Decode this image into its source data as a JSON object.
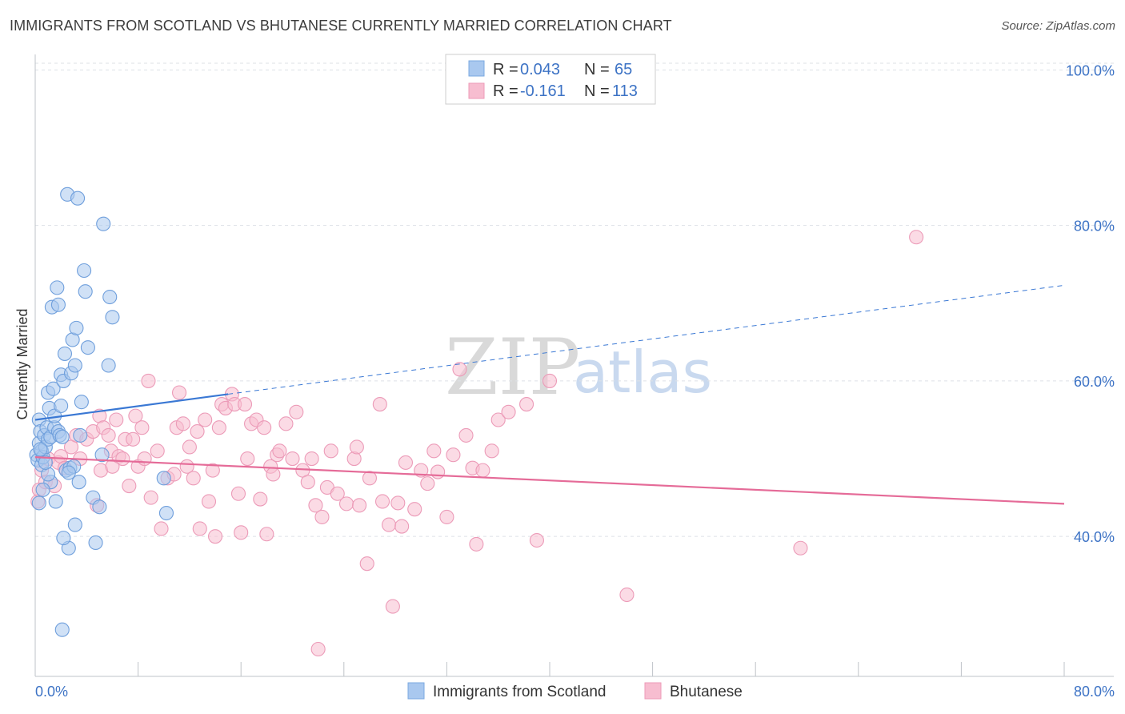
{
  "header": {
    "title": "IMMIGRANTS FROM SCOTLAND VS BHUTANESE CURRENTLY MARRIED CORRELATION CHART",
    "source": "Source: ZipAtlas.com"
  },
  "watermark": {
    "zip": "ZIP",
    "atlas": "atlas"
  },
  "legend_top": [
    {
      "r_label": "R =",
      "r_value": "0.043",
      "n_label": "N =",
      "n_value": "65",
      "color": "#8fb8ea"
    },
    {
      "r_label": "R =",
      "r_value": "-0.161",
      "n_label": "N =",
      "n_value": "113",
      "color": "#f4a7c0"
    }
  ],
  "legend_bottom": [
    {
      "label": "Immigrants from Scotland",
      "color": "#8fb8ea"
    },
    {
      "label": "Bhutanese",
      "color": "#f4a7c0"
    }
  ],
  "chart_data": {
    "type": "scatter",
    "title": "IMMIGRANTS FROM SCOTLAND VS BHUTANESE CURRENTLY MARRIED CORRELATION CHART",
    "xlabel": "",
    "ylabel": "Currently Married",
    "xlim": [
      0,
      80
    ],
    "ylim": [
      22,
      102
    ],
    "x_tick_labels": [
      "0.0%",
      "80.0%"
    ],
    "y_ticks": [
      40,
      60,
      80,
      100
    ],
    "y_tick_labels": [
      "40.0%",
      "60.0%",
      "80.0%",
      "100.0%"
    ],
    "grid": true,
    "colors": {
      "scotland": "#3a78d4",
      "bhutanese": "#e56b98",
      "scotland_fill": "#a9c8ef",
      "bhutanese_fill": "#f7bdd0"
    },
    "series": [
      {
        "name": "Immigrants from Scotland",
        "trend": {
          "x": [
            0,
            15
          ],
          "y": [
            55.0,
            58.3
          ],
          "dashed_to": [
            80,
            72.3
          ]
        },
        "points": [
          [
            0.1,
            50.5
          ],
          [
            0.2,
            49.8
          ],
          [
            0.3,
            55.0
          ],
          [
            0.3,
            52.0
          ],
          [
            0.4,
            53.5
          ],
          [
            0.5,
            51.0
          ],
          [
            0.5,
            49.2
          ],
          [
            0.6,
            50.2
          ],
          [
            0.7,
            53.0
          ],
          [
            0.8,
            51.5
          ],
          [
            0.9,
            54.0
          ],
          [
            1.0,
            52.5
          ],
          [
            1.0,
            58.5
          ],
          [
            1.1,
            56.5
          ],
          [
            1.2,
            52.8
          ],
          [
            1.2,
            47.0
          ],
          [
            1.3,
            69.5
          ],
          [
            1.4,
            59.0
          ],
          [
            1.5,
            54.0
          ],
          [
            1.5,
            55.5
          ],
          [
            1.6,
            44.5
          ],
          [
            1.7,
            72.0
          ],
          [
            1.8,
            69.8
          ],
          [
            1.8,
            53.5
          ],
          [
            1.9,
            53.0
          ],
          [
            2.0,
            56.8
          ],
          [
            2.0,
            60.8
          ],
          [
            2.1,
            52.8
          ],
          [
            2.2,
            60.0
          ],
          [
            2.3,
            63.5
          ],
          [
            2.4,
            48.5
          ],
          [
            2.5,
            84.0
          ],
          [
            2.6,
            38.5
          ],
          [
            2.7,
            48.8
          ],
          [
            2.8,
            61.0
          ],
          [
            2.9,
            65.3
          ],
          [
            3.0,
            49.0
          ],
          [
            3.1,
            62.0
          ],
          [
            3.1,
            41.5
          ],
          [
            3.2,
            66.8
          ],
          [
            3.3,
            83.5
          ],
          [
            3.4,
            47.0
          ],
          [
            3.5,
            53.0
          ],
          [
            3.6,
            57.3
          ],
          [
            3.8,
            74.2
          ],
          [
            3.9,
            71.5
          ],
          [
            4.1,
            64.3
          ],
          [
            4.5,
            45.0
          ],
          [
            4.7,
            39.2
          ],
          [
            5.0,
            43.8
          ],
          [
            5.2,
            50.5
          ],
          [
            5.3,
            80.2
          ],
          [
            5.7,
            62.0
          ],
          [
            5.8,
            70.8
          ],
          [
            6.0,
            68.2
          ],
          [
            10.0,
            47.5
          ],
          [
            10.2,
            43.0
          ],
          [
            0.3,
            44.3
          ],
          [
            2.2,
            39.8
          ],
          [
            2.1,
            28.0
          ],
          [
            0.6,
            46.0
          ],
          [
            1.0,
            48.0
          ],
          [
            0.4,
            51.2
          ],
          [
            0.8,
            49.5
          ],
          [
            2.6,
            48.2
          ]
        ]
      },
      {
        "name": "Bhutanese",
        "trend": {
          "x": [
            0,
            80
          ],
          "y": [
            50.2,
            44.2
          ]
        },
        "points": [
          [
            0.2,
            44.5
          ],
          [
            0.3,
            46.0
          ],
          [
            0.5,
            48.5
          ],
          [
            0.8,
            47.0
          ],
          [
            1.0,
            50.0
          ],
          [
            1.5,
            46.5
          ],
          [
            1.8,
            49.5
          ],
          [
            2.0,
            50.3
          ],
          [
            2.3,
            48.8
          ],
          [
            2.8,
            51.5
          ],
          [
            3.2,
            53.0
          ],
          [
            3.5,
            50.0
          ],
          [
            4.0,
            52.5
          ],
          [
            4.5,
            53.5
          ],
          [
            4.8,
            44.0
          ],
          [
            5.0,
            55.5
          ],
          [
            5.1,
            48.5
          ],
          [
            5.3,
            54.0
          ],
          [
            5.7,
            53.0
          ],
          [
            5.9,
            51.0
          ],
          [
            6.0,
            49.0
          ],
          [
            6.3,
            55.0
          ],
          [
            6.5,
            50.3
          ],
          [
            6.8,
            50.0
          ],
          [
            7.0,
            52.5
          ],
          [
            7.3,
            46.5
          ],
          [
            7.6,
            52.5
          ],
          [
            7.8,
            55.5
          ],
          [
            8.0,
            49.0
          ],
          [
            8.3,
            54.0
          ],
          [
            8.5,
            50.0
          ],
          [
            8.8,
            60.0
          ],
          [
            9.0,
            45.0
          ],
          [
            9.5,
            51.0
          ],
          [
            9.8,
            41.0
          ],
          [
            10.3,
            47.5
          ],
          [
            10.8,
            48.0
          ],
          [
            11.0,
            54.0
          ],
          [
            11.2,
            58.5
          ],
          [
            11.5,
            54.5
          ],
          [
            11.8,
            49.0
          ],
          [
            12.0,
            51.5
          ],
          [
            12.3,
            47.5
          ],
          [
            12.6,
            53.5
          ],
          [
            12.8,
            41.0
          ],
          [
            13.2,
            55.0
          ],
          [
            13.5,
            44.5
          ],
          [
            13.8,
            48.5
          ],
          [
            14.0,
            40.0
          ],
          [
            14.3,
            54.0
          ],
          [
            14.5,
            57.0
          ],
          [
            14.8,
            56.5
          ],
          [
            15.3,
            58.3
          ],
          [
            15.5,
            57.0
          ],
          [
            15.8,
            45.5
          ],
          [
            16.0,
            40.5
          ],
          [
            16.3,
            57.0
          ],
          [
            16.5,
            50.0
          ],
          [
            16.8,
            54.5
          ],
          [
            17.2,
            55.0
          ],
          [
            17.5,
            44.8
          ],
          [
            17.8,
            54.0
          ],
          [
            18.0,
            40.3
          ],
          [
            18.3,
            49.0
          ],
          [
            18.5,
            48.0
          ],
          [
            18.8,
            50.5
          ],
          [
            19.0,
            51.0
          ],
          [
            19.5,
            54.5
          ],
          [
            20.0,
            50.0
          ],
          [
            20.3,
            56.0
          ],
          [
            20.8,
            48.5
          ],
          [
            21.2,
            47.0
          ],
          [
            21.5,
            50.0
          ],
          [
            21.8,
            44.0
          ],
          [
            22.0,
            25.5
          ],
          [
            22.3,
            42.5
          ],
          [
            22.7,
            46.3
          ],
          [
            23.0,
            51.0
          ],
          [
            23.5,
            45.5
          ],
          [
            24.2,
            44.2
          ],
          [
            24.8,
            50.0
          ],
          [
            25.0,
            51.5
          ],
          [
            25.2,
            44.0
          ],
          [
            25.8,
            36.5
          ],
          [
            26.0,
            47.5
          ],
          [
            26.8,
            57.0
          ],
          [
            27.0,
            44.5
          ],
          [
            27.5,
            41.5
          ],
          [
            27.8,
            31.0
          ],
          [
            28.2,
            44.3
          ],
          [
            28.5,
            41.3
          ],
          [
            28.8,
            49.5
          ],
          [
            29.5,
            43.5
          ],
          [
            30.0,
            48.5
          ],
          [
            30.5,
            46.8
          ],
          [
            31.0,
            51.0
          ],
          [
            31.3,
            48.3
          ],
          [
            32.0,
            42.5
          ],
          [
            32.5,
            50.5
          ],
          [
            33.0,
            61.5
          ],
          [
            33.5,
            53.0
          ],
          [
            34.0,
            48.8
          ],
          [
            34.3,
            39.0
          ],
          [
            34.8,
            48.5
          ],
          [
            35.5,
            51.0
          ],
          [
            36.0,
            55.0
          ],
          [
            36.8,
            56.0
          ],
          [
            38.2,
            57.0
          ],
          [
            39.0,
            39.5
          ],
          [
            40.0,
            60.0
          ],
          [
            46.0,
            32.5
          ],
          [
            59.5,
            38.5
          ],
          [
            68.5,
            78.5
          ]
        ]
      }
    ]
  }
}
